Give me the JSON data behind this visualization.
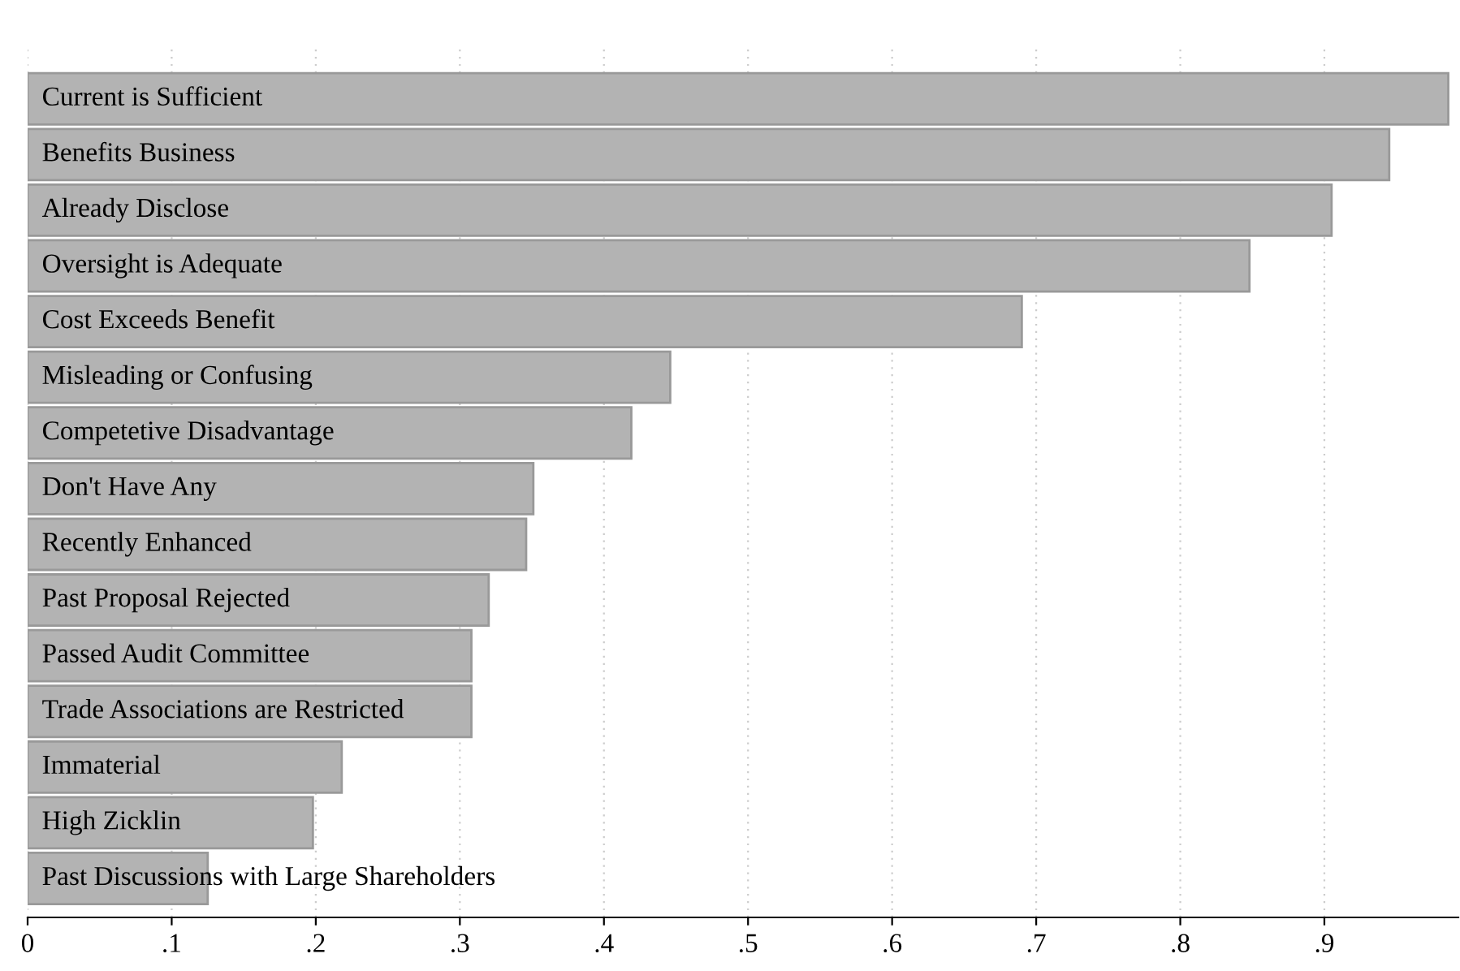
{
  "chart_data": {
    "type": "bar",
    "orientation": "horizontal",
    "categories": [
      "Current is Sufficient",
      "Benefits Business",
      "Already Disclose",
      "Oversight is Adequate",
      "Cost Exceeds Benefit",
      "Misleading or Confusing",
      "Competetive Disadvantage",
      "Don't Have Any",
      "Recently Enhanced",
      "Past Proposal Rejected",
      "Passed Audit Committee",
      "Trade Associations are Restricted",
      "Immaterial",
      "High Zicklin",
      "Past Discussions with Large Shareholders"
    ],
    "values": [
      0.986,
      0.945,
      0.905,
      0.848,
      0.69,
      0.446,
      0.419,
      0.351,
      0.346,
      0.32,
      0.308,
      0.308,
      0.218,
      0.198,
      0.125
    ],
    "color": "#b3b3b3",
    "xlim": [
      0,
      0.993
    ],
    "xticks": [
      0,
      {
        "value": 0.1,
        "label": ".1"
      },
      {
        "value": 0.2,
        "label": ".2"
      },
      {
        "value": 0.3,
        "label": ".3"
      },
      {
        "value": 0.4,
        "label": ".4"
      },
      {
        "value": 0.5,
        "label": ".5"
      },
      {
        "value": 0.6,
        "label": ".6"
      },
      {
        "value": 0.7,
        "label": ".7"
      },
      {
        "value": 0.8,
        "label": ".8"
      },
      {
        "value": 0.9,
        "label": ".9"
      }
    ],
    "grid": "x"
  }
}
